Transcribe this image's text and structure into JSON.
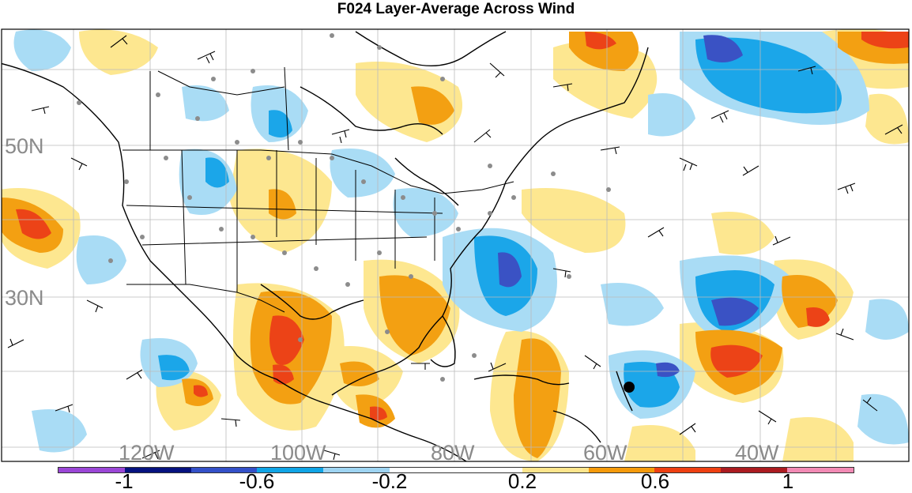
{
  "title": "F024 Layer-Average Across Wind",
  "lat_labels": [
    "50N",
    "30N"
  ],
  "lon_labels": [
    "120W",
    "100W",
    "80W",
    "60W",
    "40W"
  ],
  "colorbar": {
    "colors": [
      "#9a46d6",
      "#06127f",
      "#3350c8",
      "#0fa4e6",
      "#9ed4f2",
      "#ffffff",
      "#ffffff",
      "#fde58c",
      "#f59a0a",
      "#ee3f11",
      "#ab1b20",
      "#f28ab4"
    ],
    "tick_labels": [
      "-1",
      "-0.6",
      "-0.2",
      "0.2",
      "0.6",
      "1"
    ]
  },
  "colors": {
    "light_blue": "#a9dcf5",
    "mid_blue": "#1ba6e9",
    "dark_blue": "#3a52c4",
    "light_orange": "#fde790",
    "mid_orange": "#f3a012",
    "dark_orange": "#ec4317",
    "station_dot": "#8c8c8c",
    "coast": "#000000",
    "grid": "#bbbbbb"
  }
}
